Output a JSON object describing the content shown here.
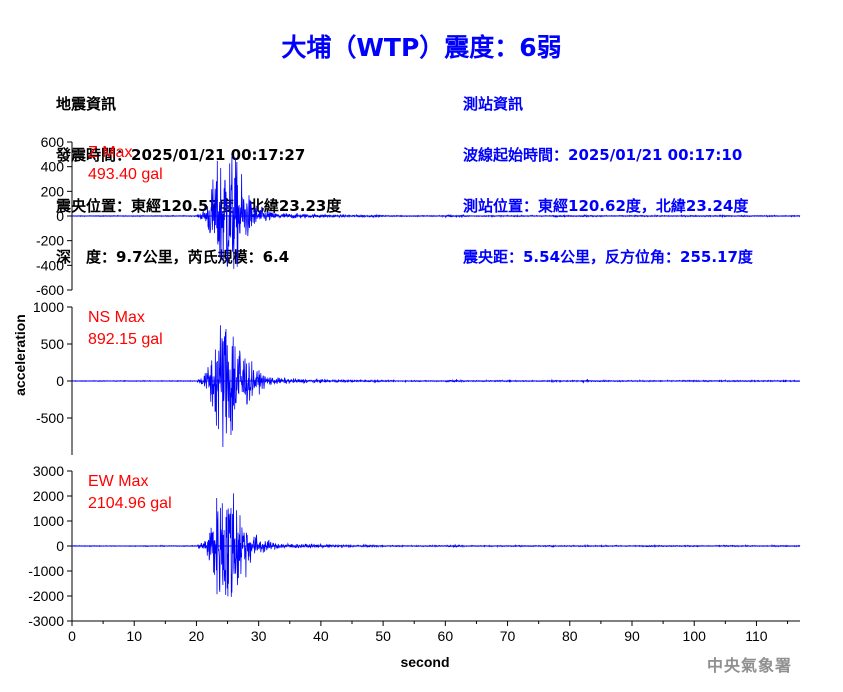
{
  "title": "大埔（WTP）震度：6弱",
  "quake_info": {
    "heading": "地震資訊",
    "time": "發震時間：2025/01/21 00:17:27",
    "epicenter": "震央位置：東經120.57度，北緯23.23度",
    "depth_mag": "深　度：9.7公里，芮氏規模：6.4"
  },
  "station_info": {
    "heading": "測站資訊",
    "wave_start": "波線起始時間：2025/01/21 00:17:10",
    "position": "測站位置：東經120.62度，北緯23.24度",
    "distance": "震央距：5.54公里，反方位角：255.17度"
  },
  "credit": "中央氣象署",
  "colors": {
    "trace": "#0000ff",
    "label": "#ff0000",
    "title": "#0000ff"
  },
  "chart_data": {
    "type": "line",
    "xlabel": "second",
    "ylabel": "acceleration",
    "xlim": [
      0,
      117
    ],
    "xticks": [
      0,
      10,
      20,
      30,
      40,
      50,
      60,
      70,
      80,
      90,
      100,
      110
    ],
    "panels": [
      {
        "component": "Z",
        "label": "Z Max",
        "max_text": "493.40 gal",
        "peak": 493.4,
        "ylim": [
          -600,
          600
        ],
        "yticks": [
          600,
          400,
          200,
          0,
          -200,
          -400,
          -600
        ]
      },
      {
        "component": "NS",
        "label": "NS Max",
        "max_text": "892.15 gal",
        "peak": 892.15,
        "ylim": [
          -1000,
          1000
        ],
        "yticks": [
          1000,
          500,
          0,
          -500
        ]
      },
      {
        "component": "EW",
        "label": "EW Max",
        "max_text": "2104.96 gal",
        "peak": 2104.96,
        "ylim": [
          -3000,
          3000
        ],
        "yticks": [
          3000,
          2000,
          1000,
          0,
          -1000,
          -2000,
          -3000
        ]
      }
    ]
  }
}
